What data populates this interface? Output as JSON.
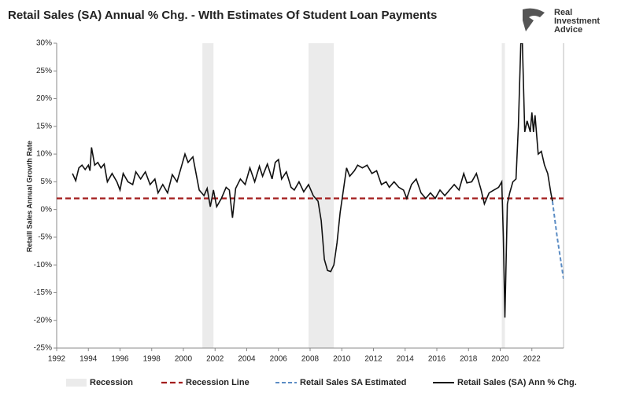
{
  "chart_data": {
    "type": "line",
    "title": "Retail Sales (SA) Annual % Chg. - WIth Estimates Of Student Loan Payments",
    "brand": [
      "Real",
      "Investment",
      "Advice"
    ],
    "y_label": "Retaill Sales Annual Growth Rate",
    "xlim": [
      1992,
      2024
    ],
    "xticks": [
      1992,
      1994,
      1996,
      1998,
      2000,
      2002,
      2004,
      2006,
      2008,
      2010,
      2012,
      2014,
      2016,
      2018,
      2020,
      2022
    ],
    "ylim": [
      -25,
      30
    ],
    "yticks": [
      {
        "value": -25,
        "label": "-25%"
      },
      {
        "value": -20,
        "label": "-20%"
      },
      {
        "value": -15,
        "label": "-15%"
      },
      {
        "value": -10,
        "label": "-10%"
      },
      {
        "value": -5,
        "label": "-5%"
      },
      {
        "value": 0,
        "label": "0%"
      },
      {
        "value": 5,
        "label": "5%"
      },
      {
        "value": 10,
        "label": "10%"
      },
      {
        "value": 15,
        "label": "15%"
      },
      {
        "value": 20,
        "label": "20%"
      },
      {
        "value": 25,
        "label": "25%"
      },
      {
        "value": 30,
        "label": "30%"
      }
    ],
    "grid": false,
    "recessions": {
      "name": "Recession",
      "color": "#ebebeb",
      "spans": [
        [
          2001.2,
          2001.9
        ],
        [
          2007.9,
          2009.5
        ],
        [
          2020.1,
          2020.3
        ]
      ]
    },
    "recession_line": {
      "name": "Recession Line",
      "color": "#a31d1d",
      "value": 2
    },
    "series": [
      {
        "name": "Retail Sales SA Estimated",
        "color": "#5b8cc4",
        "dashed": true,
        "x": [
          2023.3,
          2023.6,
          2024.0
        ],
        "values": [
          1.5,
          -5,
          -12.5
        ]
      },
      {
        "name": "Retail Sales (SA) Ann % Chg.",
        "color": "#111111",
        "dashed": false,
        "x": [
          1993.0,
          1993.2,
          1993.4,
          1993.6,
          1993.8,
          1994.0,
          1994.1,
          1994.2,
          1994.4,
          1994.6,
          1994.8,
          1995.0,
          1995.2,
          1995.5,
          1995.8,
          1996.0,
          1996.2,
          1996.5,
          1996.8,
          1997.0,
          1997.3,
          1997.6,
          1997.9,
          1998.2,
          1998.4,
          1998.7,
          1999.0,
          1999.3,
          1999.6,
          1999.9,
          2000.1,
          2000.3,
          2000.6,
          2000.8,
          2001.0,
          2001.3,
          2001.5,
          2001.7,
          2001.9,
          2002.1,
          2002.4,
          2002.7,
          2002.9,
          2003.1,
          2003.3,
          2003.6,
          2003.9,
          2004.2,
          2004.5,
          2004.8,
          2005.0,
          2005.3,
          2005.6,
          2005.8,
          2006.0,
          2006.2,
          2006.5,
          2006.8,
          2007.0,
          2007.3,
          2007.6,
          2007.9,
          2008.2,
          2008.5,
          2008.7,
          2008.9,
          2009.1,
          2009.3,
          2009.5,
          2009.7,
          2009.9,
          2010.1,
          2010.3,
          2010.5,
          2010.8,
          2011.0,
          2011.3,
          2011.6,
          2011.9,
          2012.2,
          2012.5,
          2012.8,
          2013.0,
          2013.3,
          2013.6,
          2013.9,
          2014.1,
          2014.4,
          2014.7,
          2015.0,
          2015.3,
          2015.6,
          2015.9,
          2016.2,
          2016.5,
          2016.8,
          2017.1,
          2017.4,
          2017.7,
          2017.9,
          2018.2,
          2018.5,
          2018.8,
          2019.0,
          2019.3,
          2019.6,
          2019.9,
          2020.1,
          2020.2,
          2020.3,
          2020.45,
          2020.6,
          2020.8,
          2021.0,
          2021.15,
          2021.3,
          2021.4,
          2021.55,
          2021.7,
          2021.9,
          2022.0,
          2022.1,
          2022.2,
          2022.4,
          2022.6,
          2022.8,
          2023.0,
          2023.2,
          2023.3
        ],
        "values": [
          6.5,
          5.2,
          7.5,
          8,
          7.2,
          8,
          7,
          11.2,
          8,
          8.5,
          7.5,
          8.2,
          5,
          6.5,
          5,
          3.5,
          6.5,
          5,
          4.5,
          6.8,
          5.5,
          6.8,
          4.5,
          5.5,
          3,
          4.5,
          3,
          6.3,
          5,
          8,
          10,
          8.5,
          9.5,
          6.5,
          3.5,
          2.5,
          3.8,
          0.5,
          3.5,
          0.5,
          2,
          4,
          3.5,
          -1.5,
          3.8,
          5.5,
          4.5,
          7.5,
          5,
          7.8,
          6,
          8.2,
          5.5,
          8.5,
          9,
          5.5,
          6.8,
          4,
          3.5,
          5,
          3.2,
          4.5,
          2.5,
          1.5,
          -2,
          -9,
          -11,
          -11.2,
          -10,
          -6,
          -0.5,
          3.5,
          7.5,
          6,
          7,
          8,
          7.5,
          8,
          6.5,
          7,
          4.5,
          5,
          4,
          5,
          4,
          3.5,
          2,
          4.5,
          5.5,
          3,
          2,
          3,
          2,
          3.5,
          2.5,
          3.5,
          4.5,
          3.5,
          6.5,
          4.8,
          5,
          6.5,
          3.5,
          1,
          3,
          3.5,
          4,
          5,
          -5,
          -19.5,
          1,
          3,
          5,
          5.5,
          15,
          30,
          30,
          14,
          16,
          14,
          17.5,
          14,
          17,
          10,
          10.5,
          8,
          6.5,
          3,
          1.5
        ]
      }
    ]
  }
}
